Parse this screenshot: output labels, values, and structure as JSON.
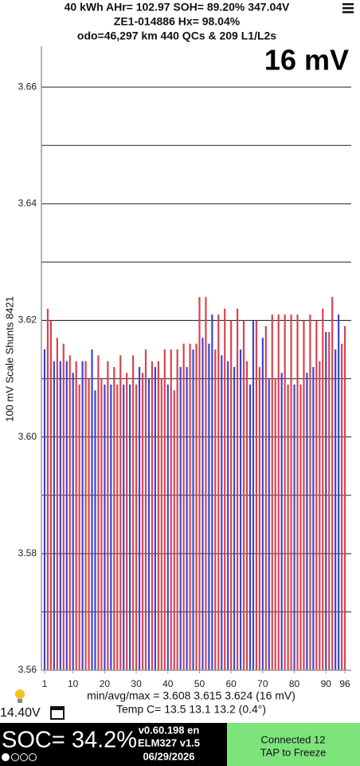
{
  "header": {
    "line1": "40 kWh  AHr= 102.97  SOH= 89.20%   347.04V",
    "line2": "ZE1-014886   Hx= 98.04%",
    "line3": "odo=46,297 km 440 QCs & 209 L1/L2s"
  },
  "chart_data": {
    "type": "bar",
    "title": "16 mV",
    "y_label": "100 mV Scale  Shunts 8421",
    "x": [
      1,
      2,
      3,
      4,
      5,
      6,
      7,
      8,
      9,
      10,
      11,
      12,
      13,
      14,
      15,
      16,
      17,
      18,
      19,
      20,
      21,
      22,
      23,
      24,
      25,
      26,
      27,
      28,
      29,
      30,
      31,
      32,
      33,
      34,
      35,
      36,
      37,
      38,
      39,
      40,
      41,
      42,
      43,
      44,
      45,
      46,
      47,
      48,
      49,
      50,
      51,
      52,
      53,
      54,
      55,
      56,
      57,
      58,
      59,
      60,
      61,
      62,
      63,
      64,
      65,
      66,
      67,
      68,
      69,
      70,
      71,
      72,
      73,
      74,
      75,
      76,
      77,
      78,
      79,
      80,
      81,
      82,
      83,
      84,
      85,
      86,
      87,
      88,
      89,
      90,
      91,
      92,
      93,
      94,
      95,
      96
    ],
    "values": [
      3.615,
      3.622,
      3.62,
      3.613,
      3.617,
      3.613,
      3.616,
      3.613,
      3.614,
      3.611,
      3.613,
      3.609,
      3.613,
      3.613,
      3.61,
      3.615,
      3.608,
      3.614,
      3.61,
      3.609,
      3.613,
      3.609,
      3.612,
      3.609,
      3.614,
      3.609,
      3.611,
      3.609,
      3.614,
      3.609,
      3.612,
      3.611,
      3.615,
      3.61,
      3.613,
      3.612,
      3.613,
      3.61,
      3.615,
      3.609,
      3.615,
      3.608,
      3.615,
      3.612,
      3.616,
      3.612,
      3.616,
      3.615,
      3.616,
      3.624,
      3.617,
      3.624,
      3.616,
      3.621,
      3.615,
      3.621,
      3.614,
      3.622,
      3.613,
      3.62,
      3.612,
      3.622,
      3.615,
      3.62,
      3.613,
      3.609,
      3.62,
      3.62,
      3.612,
      3.617,
      3.619,
      3.61,
      3.621,
      3.61,
      3.621,
      3.611,
      3.621,
      3.609,
      3.621,
      3.609,
      3.621,
      3.609,
      3.62,
      3.611,
      3.621,
      3.612,
      3.62,
      3.613,
      3.622,
      3.618,
      3.618,
      3.624,
      3.615,
      3.621,
      3.616,
      3.619
    ],
    "bar_colors": [
      "#3b43d8",
      "#d9424e",
      "#d9424e",
      "#3b43d8",
      "#d9424e",
      "#3b43d8",
      "#d9424e",
      "#3b43d8",
      "#d9424e",
      "#3b43d8",
      "#d9424e",
      "#d9424e",
      "#3b43d8",
      "#d9424e",
      "#d9424e",
      "#3b43d8",
      "#3b43d8",
      "#d9424e",
      "#d9424e",
      "#3b43d8",
      "#d9424e",
      "#3b43d8",
      "#d9424e",
      "#d9424e",
      "#d9424e",
      "#3b43d8",
      "#d9424e",
      "#3b43d8",
      "#d9424e",
      "#d9424e",
      "#3b43d8",
      "#d9424e",
      "#d9424e",
      "#3b43d8",
      "#d9424e",
      "#3b43d8",
      "#d9424e",
      "#d9424e",
      "#d9424e",
      "#3b43d8",
      "#d9424e",
      "#d9424e",
      "#d9424e",
      "#3b43d8",
      "#d9424e",
      "#3b43d8",
      "#d9424e",
      "#3b43d8",
      "#d9424e",
      "#d9424e",
      "#3b43d8",
      "#d9424e",
      "#3b43d8",
      "#3b43d8",
      "#d9424e",
      "#d9424e",
      "#3b43d8",
      "#d9424e",
      "#3b43d8",
      "#d9424e",
      "#3b43d8",
      "#d9424e",
      "#3b43d8",
      "#d9424e",
      "#d9424e",
      "#3b43d8",
      "#3b43d8",
      "#d9424e",
      "#d9424e",
      "#3b43d8",
      "#d9424e",
      "#3b43d8",
      "#d9424e",
      "#d9424e",
      "#d9424e",
      "#3b43d8",
      "#d9424e",
      "#d9424e",
      "#d9424e",
      "#3b43d8",
      "#d9424e",
      "#d9424e",
      "#d9424e",
      "#3b43d8",
      "#d9424e",
      "#3b43d8",
      "#d9424e",
      "#d9424e",
      "#d9424e",
      "#3b43d8",
      "#d9424e",
      "#d9424e",
      "#3b43d8",
      "#3b43d8",
      "#d9424e",
      "#d9424e"
    ],
    "xlim": [
      0,
      98
    ],
    "xticks": [
      1,
      10,
      20,
      30,
      40,
      50,
      60,
      70,
      80,
      90,
      96
    ],
    "ylim": [
      3.56,
      3.667
    ],
    "yticks": [
      3.56,
      3.58,
      {
        "value": 3.6,
        "label": "3.60"
      },
      3.62,
      3.64,
      3.66
    ],
    "minor_gridlines": [
      3.57,
      3.59,
      3.61,
      3.63,
      3.65
    ],
    "grid": true
  },
  "footer": {
    "stats": "min/avg/max = 3.608 3.615 3.624  (16 mV)",
    "temp": "Temp C= 13.5  13.1  13.2  (0.4°)",
    "voltage": "14.40V",
    "soc": "SOC= 34.2%",
    "version": "v0.60.198 en",
    "adapter": "ELM327 v1.5",
    "date": "06/29/2026",
    "status": "Connected 12",
    "action": "TAP to Freeze"
  }
}
